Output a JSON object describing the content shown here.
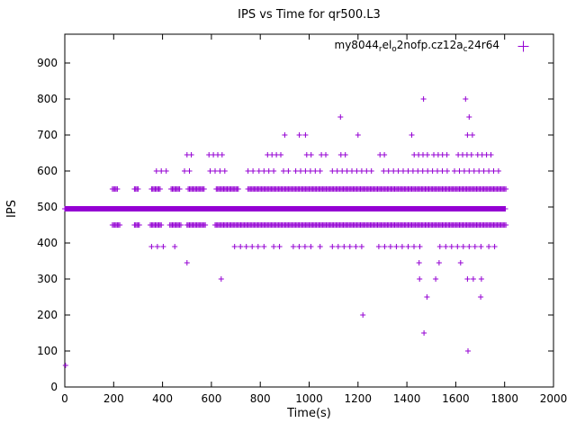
{
  "window": {
    "background": "#ffffff",
    "foreground": "#000000"
  },
  "chart_data": {
    "type": "scatter",
    "title": "IPS vs Time for qr500.L3",
    "xlabel": "Time(s)",
    "ylabel": "IPS",
    "xlim": [
      0,
      2000
    ],
    "ylim": [
      0,
      980
    ],
    "xticks": [
      0,
      200,
      400,
      600,
      800,
      1000,
      1200,
      1400,
      1600,
      1800,
      2000
    ],
    "yticks": [
      0,
      100,
      200,
      300,
      400,
      500,
      600,
      700,
      800,
      900
    ],
    "grid": false,
    "legend_position": "top-right-inside",
    "marker": "plus",
    "color": "#9400d3",
    "legend_text": "my8044relo2nofp.cz12ac24r64",
    "legend_segments": [
      {
        "text": "my8044"
      },
      {
        "text": "r",
        "sub": true
      },
      {
        "text": "el"
      },
      {
        "text": "o",
        "sub": true
      },
      {
        "text": "2nofp.cz12a"
      },
      {
        "text": "c",
        "sub": true
      },
      {
        "text": "24r64"
      }
    ],
    "series": [
      {
        "name": "my8044relo2nofp.cz12ac24r64",
        "bands": [
          {
            "y": 495,
            "step": 3,
            "segments": [
              [
                0,
                1805
              ]
            ]
          },
          {
            "y": 550,
            "step": 5,
            "segments": [
              [
                195,
                215
              ],
              [
                285,
                300
              ],
              [
                355,
                390
              ],
              [
                435,
                470
              ],
              [
                505,
                570
              ],
              [
                620,
                710
              ],
              [
                750,
                1805
              ]
            ]
          },
          {
            "y": 450,
            "step": 5,
            "segments": [
              [
                195,
                225
              ],
              [
                285,
                305
              ],
              [
                350,
                395
              ],
              [
                430,
                475
              ],
              [
                500,
                575
              ],
              [
                615,
                1805
              ]
            ]
          },
          {
            "y": 390,
            "step": 24,
            "segments": [
              [
                355,
                405
              ],
              [
                450,
                465
              ],
              [
                695,
                825
              ],
              [
                855,
                885
              ],
              [
                935,
                1015
              ],
              [
                1045,
                1065
              ],
              [
                1095,
                1235
              ],
              [
                1285,
                1475
              ],
              [
                1535,
                1705
              ],
              [
                1735,
                1765
              ]
            ]
          },
          {
            "y": 600,
            "step": 20,
            "segments": [
              [
                375,
                425
              ],
              [
                490,
                520
              ],
              [
                595,
                670
              ],
              [
                750,
                770
              ],
              [
                795,
                860
              ],
              [
                895,
                920
              ],
              [
                945,
                1060
              ],
              [
                1095,
                1265
              ],
              [
                1305,
                1425
              ],
              [
                1445,
                1565
              ],
              [
                1595,
                1785
              ]
            ]
          },
          {
            "y": 645,
            "step": 18,
            "segments": [
              [
                500,
                525
              ],
              [
                590,
                655
              ],
              [
                830,
                895
              ],
              [
                990,
                1015
              ],
              [
                1050,
                1075
              ],
              [
                1130,
                1155
              ],
              [
                1290,
                1315
              ],
              [
                1430,
                1485
              ],
              [
                1510,
                1575
              ],
              [
                1610,
                1665
              ],
              [
                1690,
                1755
              ]
            ]
          }
        ],
        "outliers": [
          [
            900,
            700
          ],
          [
            960,
            700
          ],
          [
            985,
            700
          ],
          [
            1200,
            700
          ],
          [
            1420,
            700
          ],
          [
            1648,
            700
          ],
          [
            1668,
            700
          ],
          [
            1128,
            750
          ],
          [
            1655,
            750
          ],
          [
            1468,
            800
          ],
          [
            1640,
            800
          ],
          [
            500,
            345
          ],
          [
            1450,
            345
          ],
          [
            1532,
            345
          ],
          [
            1620,
            345
          ],
          [
            640,
            300
          ],
          [
            1452,
            300
          ],
          [
            1518,
            300
          ],
          [
            1648,
            300
          ],
          [
            1672,
            300
          ],
          [
            1705,
            300
          ],
          [
            1482,
            250
          ],
          [
            1702,
            250
          ],
          [
            1220,
            200
          ],
          [
            1470,
            150
          ],
          [
            1650,
            100
          ],
          [
            3,
            60
          ]
        ]
      }
    ]
  }
}
